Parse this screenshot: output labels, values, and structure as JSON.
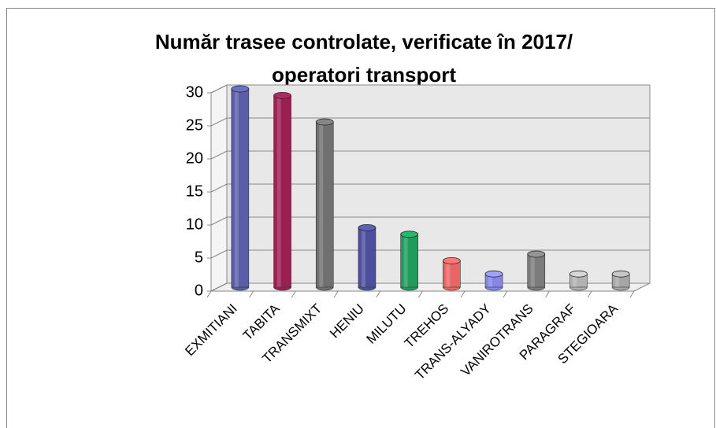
{
  "chart_data": {
    "type": "bar3d",
    "title": [
      "Număr trasee controlate, verificate în 2017/",
      "operatori transport"
    ],
    "categories": [
      "EXMITIANI",
      "TABITA",
      "TRANSMIXT",
      "HENIU",
      "MILUTU",
      "TREHOS",
      "TRANS-ALYADY",
      "VANIROTRANS",
      "PARAGRAF",
      "STEGIOARA"
    ],
    "values": [
      30,
      29,
      25,
      9,
      8,
      4,
      2,
      5,
      2,
      2
    ],
    "colors": [
      "#5a5ea8",
      "#9a1f52",
      "#707070",
      "#4d4f9e",
      "#1f9b5c",
      "#ea6464",
      "#8686ea",
      "#7c7c7c",
      "#b2b2b2",
      "#a6a6a6"
    ],
    "ylim": [
      0,
      30
    ],
    "yticks": [
      0,
      5,
      10,
      15,
      20,
      25,
      30
    ],
    "grid": true
  }
}
